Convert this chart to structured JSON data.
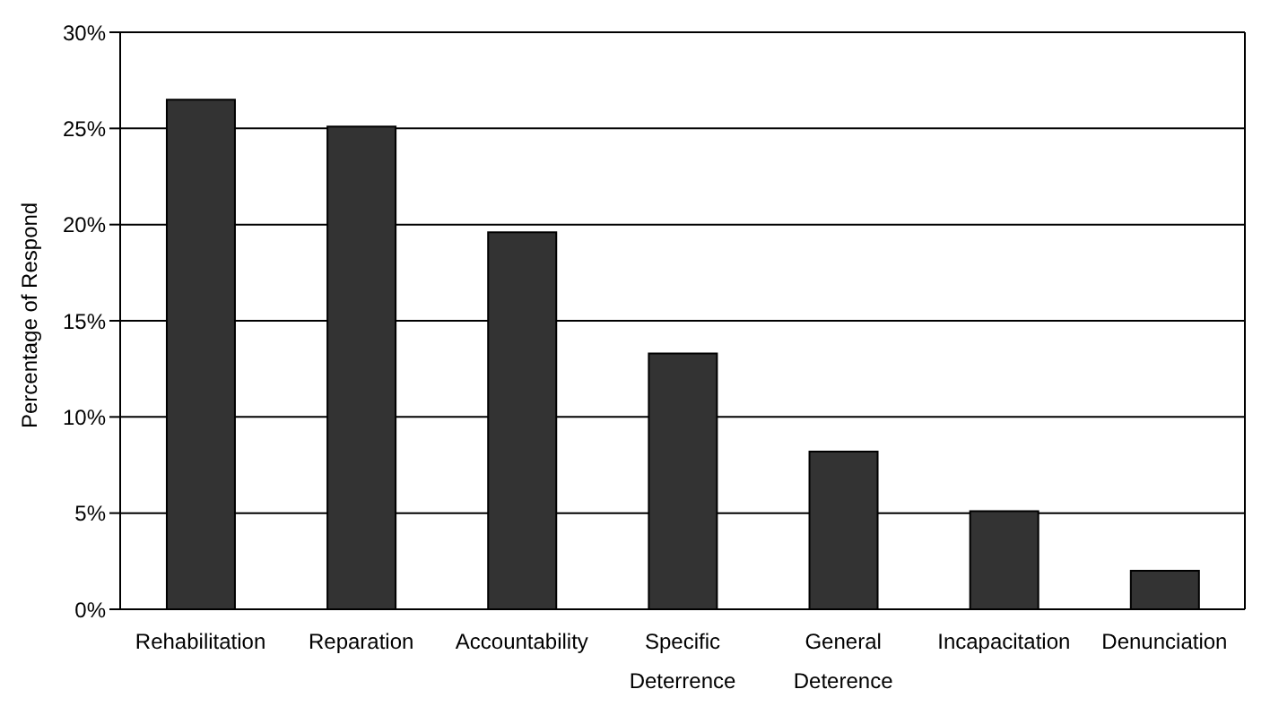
{
  "chart_data": {
    "type": "bar",
    "ylabel": "Percentage of Respond",
    "categories": [
      "Rehabilitation",
      "Reparation",
      "Accountability",
      "Specific Deterrence",
      "General Deterence",
      "Incapacitation",
      "Denunciation"
    ],
    "values": [
      26.5,
      25.1,
      19.6,
      13.3,
      8.2,
      5.1,
      2.0
    ],
    "color": "#333333",
    "ylim": [
      0,
      30
    ],
    "yticks": [
      {
        "value": 0,
        "label": "0%"
      },
      {
        "value": 5,
        "label": "5%"
      },
      {
        "value": 10,
        "label": "10%"
      },
      {
        "value": 15,
        "label": "15%"
      },
      {
        "value": 20,
        "label": "20%"
      },
      {
        "value": 25,
        "label": "25%"
      },
      {
        "value": 30,
        "label": "30%"
      }
    ],
    "grid": "y"
  }
}
